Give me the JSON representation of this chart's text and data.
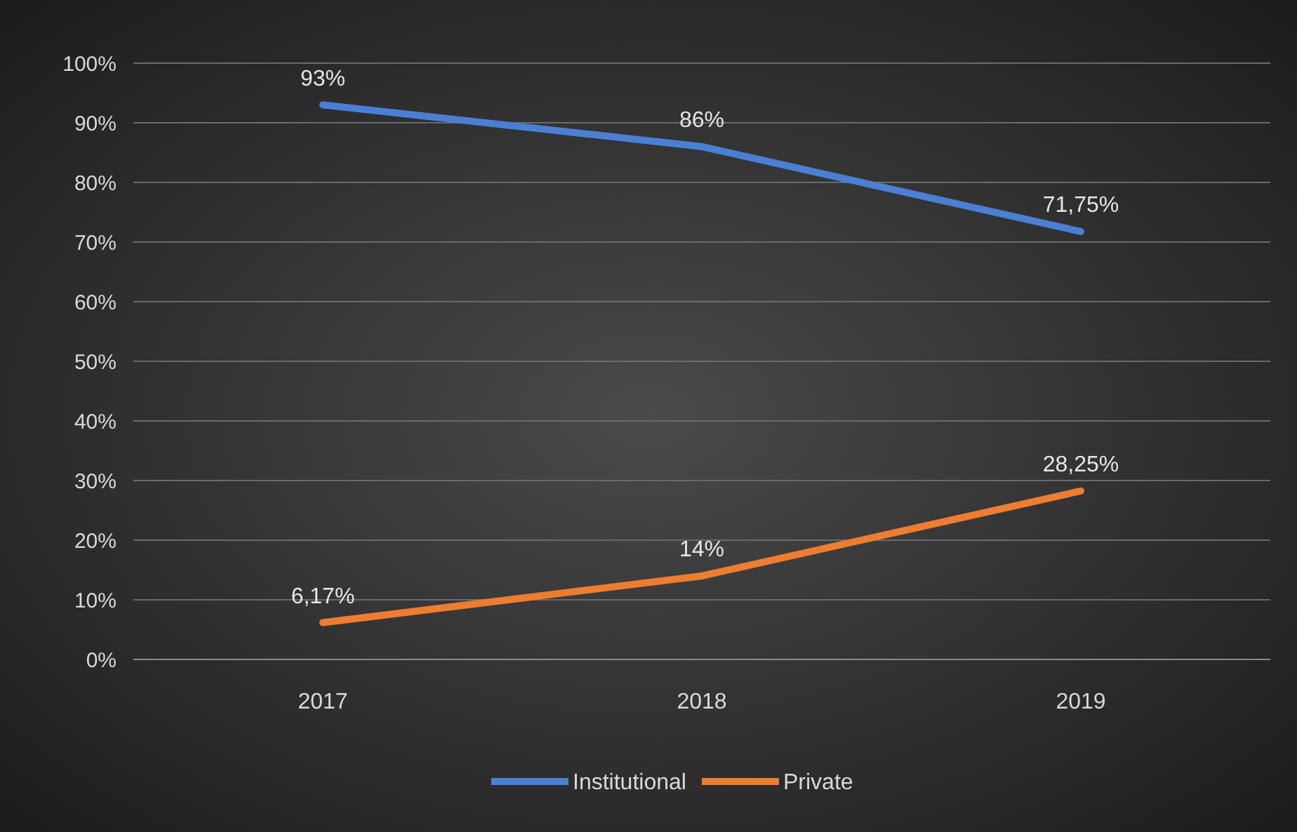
{
  "chart_data": {
    "type": "line",
    "categories": [
      "2017",
      "2018",
      "2019"
    ],
    "series": [
      {
        "name": "Institutional",
        "color": "#4a7fd4",
        "values": [
          93,
          86,
          71.75
        ],
        "value_labels": [
          "93%",
          "86%",
          "71,75%"
        ]
      },
      {
        "name": "Private",
        "color": "#ed7d31",
        "values": [
          6.17,
          14,
          28.25
        ],
        "value_labels": [
          "6,17%",
          "14%",
          "28,25%"
        ]
      }
    ],
    "ylim": [
      0,
      100
    ],
    "yticks": [
      {
        "value": 0,
        "label": "0%"
      },
      {
        "value": 10,
        "label": "10%"
      },
      {
        "value": 20,
        "label": "20%"
      },
      {
        "value": 30,
        "label": "30%"
      },
      {
        "value": 40,
        "label": "40%"
      },
      {
        "value": 50,
        "label": "50%"
      },
      {
        "value": 60,
        "label": "60%"
      },
      {
        "value": 70,
        "label": "70%"
      },
      {
        "value": 80,
        "label": "80%"
      },
      {
        "value": 90,
        "label": "90%"
      },
      {
        "value": 100,
        "label": "100%"
      }
    ],
    "grid": "y",
    "legend": "bottom",
    "marker": "none",
    "line_style": "solid"
  }
}
